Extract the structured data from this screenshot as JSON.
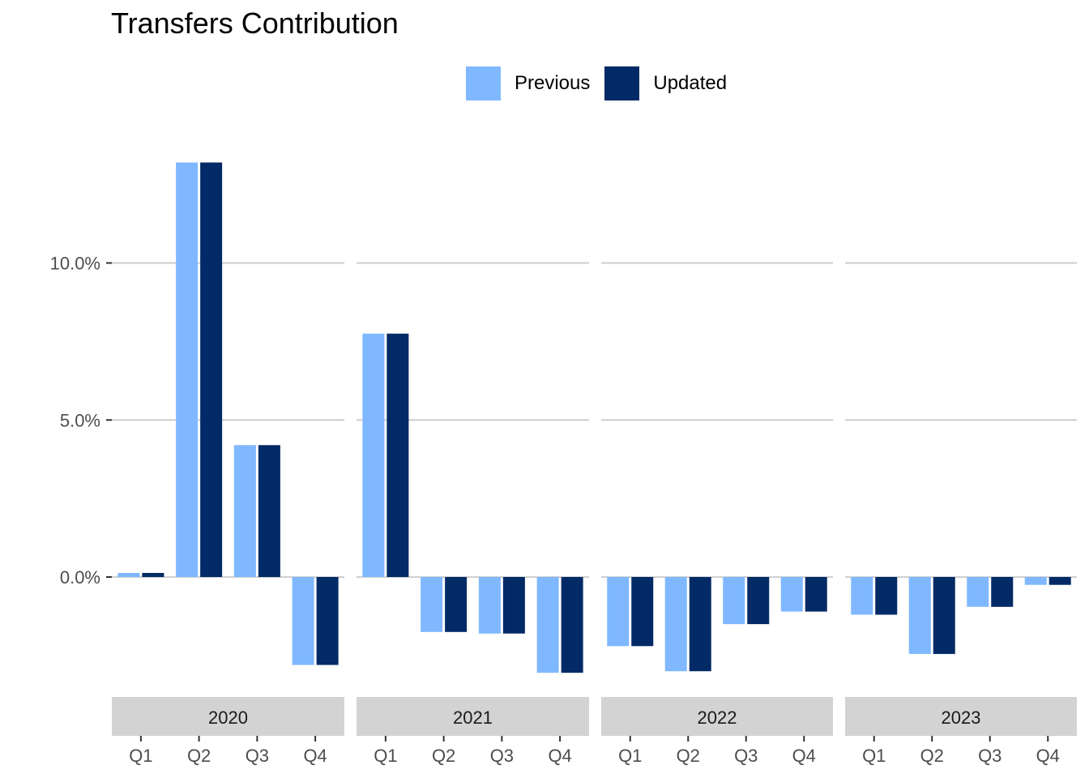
{
  "chart_data": {
    "type": "bar",
    "title": "Transfers Contribution",
    "xlabel": "",
    "ylabel": "",
    "ylim": [
      -3.3,
      14.0
    ],
    "yticks": [
      0,
      5,
      10
    ],
    "ytick_labels": [
      "0.0%",
      "5.0%",
      "10.0%"
    ],
    "grid": true,
    "legend_position": "top",
    "facets": [
      "2020",
      "2021",
      "2022",
      "2023"
    ],
    "categories": [
      "Q1",
      "Q2",
      "Q3",
      "Q4"
    ],
    "series": [
      {
        "name": "Previous",
        "color": "#7fb8ff",
        "values": [
          [
            0.13,
            13.2,
            4.2,
            -2.8
          ],
          [
            7.75,
            -1.75,
            -1.8,
            -3.05
          ],
          [
            -2.2,
            -3.0,
            -1.5,
            -1.1
          ],
          [
            -1.2,
            -2.45,
            -0.95,
            -0.25
          ]
        ]
      },
      {
        "name": "Updated",
        "color": "#022a66",
        "values": [
          [
            0.13,
            13.2,
            4.2,
            -2.8
          ],
          [
            7.75,
            -1.75,
            -1.8,
            -3.05
          ],
          [
            -2.2,
            -3.0,
            -1.5,
            -1.1
          ],
          [
            -1.2,
            -2.45,
            -0.95,
            -0.25
          ]
        ]
      }
    ]
  }
}
